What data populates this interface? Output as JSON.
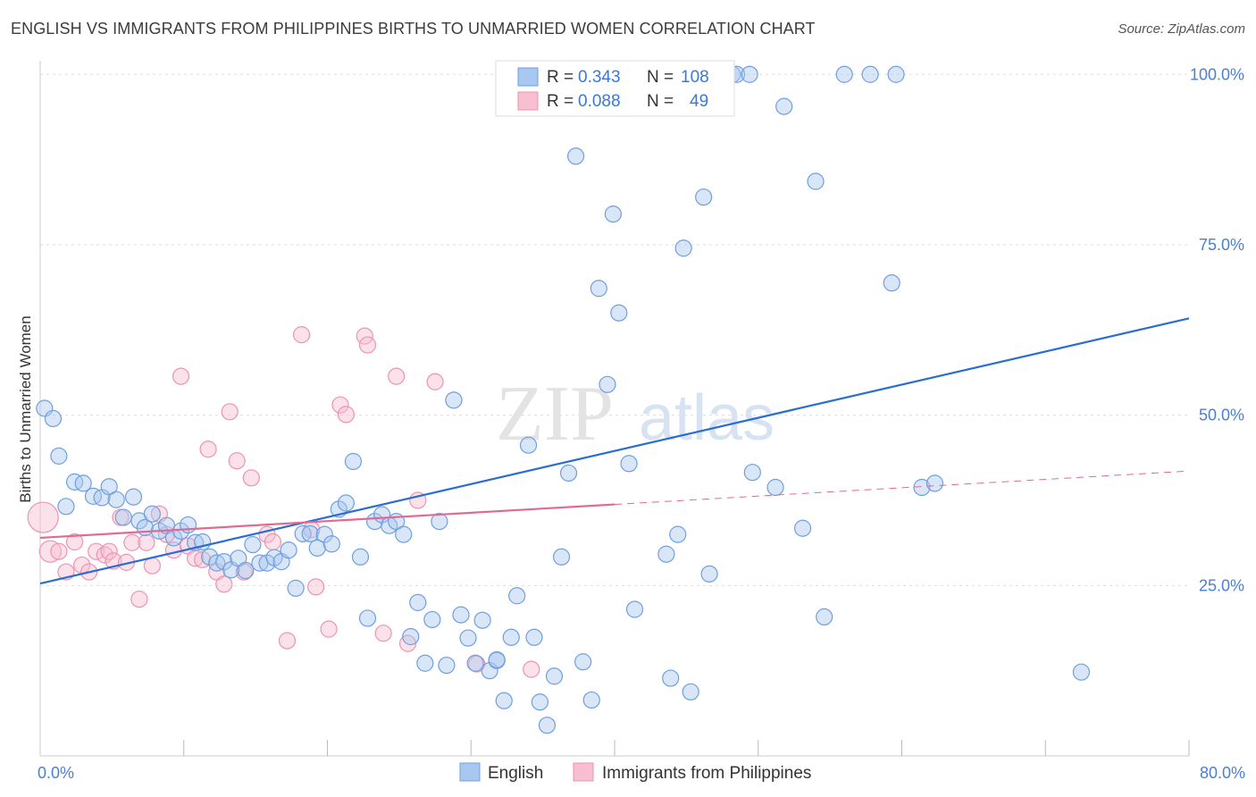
{
  "title": "ENGLISH VS IMMIGRANTS FROM PHILIPPINES BIRTHS TO UNMARRIED WOMEN CORRELATION CHART",
  "source": "Source: ZipAtlas.com",
  "watermark": {
    "zip": "ZIP",
    "atlas": "atlas"
  },
  "legend": {
    "english": {
      "r_label": "R =",
      "r": "0.343",
      "n_label": "N =",
      "n": "108"
    },
    "philippines": {
      "r_label": "R =",
      "r": "0.088",
      "n_label": "N =",
      "n": "49"
    }
  },
  "colors": {
    "english_fill": "#a9c8f0",
    "english_stroke": "#6f9fe0",
    "english_line": "#2a6dd2",
    "phil_fill": "#f7bfd0",
    "phil_stroke": "#ec93b0",
    "phil_line": "#e06a93",
    "grid": "#dddddd",
    "axis": "#cccccc"
  },
  "chart_data": {
    "type": "scatter",
    "xlabel": "",
    "ylabel": "Births to Unmarried Women",
    "xlim": [
      0,
      80
    ],
    "ylim": [
      0,
      102
    ],
    "x_tick_labels": [
      {
        "value": 0,
        "label": "0.0%"
      },
      {
        "value": 80,
        "label": "80.0%"
      }
    ],
    "y_tick_labels": [
      {
        "value": 25,
        "label": "25.0%"
      },
      {
        "value": 50,
        "label": "50.0%"
      },
      {
        "value": 75,
        "label": "75.0%"
      },
      {
        "value": 100,
        "label": "100.0%"
      }
    ],
    "series": [
      {
        "name": "English",
        "trend": {
          "x": [
            0,
            80
          ],
          "y": [
            25.3,
            64.2
          ]
        },
        "points": [
          [
            0.3,
            51.0
          ],
          [
            0.9,
            49.5
          ],
          [
            1.3,
            44.0
          ],
          [
            1.8,
            36.6
          ],
          [
            2.4,
            40.2
          ],
          [
            3.0,
            40.0
          ],
          [
            3.7,
            38.1
          ],
          [
            4.3,
            37.9
          ],
          [
            4.8,
            39.5
          ],
          [
            5.3,
            37.6
          ],
          [
            5.8,
            35.0
          ],
          [
            6.5,
            38.0
          ],
          [
            6.9,
            34.5
          ],
          [
            7.3,
            33.5
          ],
          [
            7.8,
            35.5
          ],
          [
            8.3,
            33.0
          ],
          [
            8.8,
            33.8
          ],
          [
            9.3,
            32.0
          ],
          [
            9.8,
            33.0
          ],
          [
            10.3,
            33.9
          ],
          [
            10.8,
            31.3
          ],
          [
            11.3,
            31.4
          ],
          [
            11.8,
            29.2
          ],
          [
            12.3,
            28.3
          ],
          [
            12.8,
            28.5
          ],
          [
            13.3,
            27.3
          ],
          [
            13.8,
            29.0
          ],
          [
            14.3,
            27.2
          ],
          [
            14.8,
            31.0
          ],
          [
            15.3,
            28.3
          ],
          [
            15.8,
            28.3
          ],
          [
            16.3,
            29.1
          ],
          [
            16.8,
            28.5
          ],
          [
            17.3,
            30.2
          ],
          [
            17.8,
            24.6
          ],
          [
            18.3,
            32.6
          ],
          [
            18.8,
            32.6
          ],
          [
            19.3,
            30.5
          ],
          [
            19.8,
            32.5
          ],
          [
            20.3,
            31.1
          ],
          [
            20.8,
            36.2
          ],
          [
            21.3,
            37.1
          ],
          [
            21.8,
            43.2
          ],
          [
            22.3,
            29.2
          ],
          [
            22.8,
            20.2
          ],
          [
            23.3,
            34.4
          ],
          [
            23.8,
            35.4
          ],
          [
            24.3,
            33.8
          ],
          [
            24.8,
            34.4
          ],
          [
            25.3,
            32.5
          ],
          [
            25.8,
            17.5
          ],
          [
            26.3,
            22.5
          ],
          [
            26.8,
            13.6
          ],
          [
            27.3,
            20.0
          ],
          [
            27.8,
            34.4
          ],
          [
            28.3,
            13.3
          ],
          [
            28.8,
            52.2
          ],
          [
            29.3,
            20.7
          ],
          [
            29.8,
            17.3
          ],
          [
            30.3,
            13.6
          ],
          [
            30.8,
            19.9
          ],
          [
            31.3,
            12.5
          ],
          [
            31.8,
            14.0
          ],
          [
            32.3,
            8.1
          ],
          [
            32.8,
            17.4
          ],
          [
            33.2,
            23.5
          ],
          [
            34.0,
            45.6
          ],
          [
            34.4,
            17.4
          ],
          [
            34.8,
            7.9
          ],
          [
            35.3,
            4.5
          ],
          [
            35.8,
            11.7
          ],
          [
            36.3,
            29.2
          ],
          [
            36.8,
            41.5
          ],
          [
            37.3,
            88.0
          ],
          [
            37.8,
            13.8
          ],
          [
            38.4,
            8.2
          ],
          [
            38.9,
            68.6
          ],
          [
            39.5,
            54.5
          ],
          [
            39.9,
            79.5
          ],
          [
            40.3,
            65.0
          ],
          [
            41.0,
            42.9
          ],
          [
            41.4,
            21.5
          ],
          [
            42.3,
            100.0
          ],
          [
            43.0,
            100.0
          ],
          [
            43.6,
            29.6
          ],
          [
            43.9,
            11.4
          ],
          [
            44.4,
            32.5
          ],
          [
            44.8,
            74.5
          ],
          [
            45.3,
            9.4
          ],
          [
            46.2,
            82.0
          ],
          [
            46.6,
            26.7
          ],
          [
            48.2,
            100.0
          ],
          [
            48.5,
            100.0
          ],
          [
            49.4,
            100.0
          ],
          [
            49.6,
            41.6
          ],
          [
            51.2,
            39.4
          ],
          [
            51.8,
            95.3
          ],
          [
            53.1,
            33.4
          ],
          [
            54.0,
            84.3
          ],
          [
            54.6,
            20.4
          ],
          [
            56.0,
            100.0
          ],
          [
            57.8,
            100.0
          ],
          [
            59.3,
            69.4
          ],
          [
            59.6,
            100.0
          ],
          [
            61.4,
            39.4
          ],
          [
            62.3,
            40.0
          ],
          [
            72.5,
            12.3
          ],
          [
            31.8,
            14.1
          ]
        ]
      },
      {
        "name": "Immigrants from Philippines",
        "trend": {
          "x": [
            0,
            40
          ],
          "y": [
            32.0,
            36.9
          ]
        },
        "trend_extension": {
          "x": [
            40,
            80
          ],
          "y": [
            36.9,
            41.8
          ]
        },
        "points": [
          [
            0.2,
            35.0
          ],
          [
            0.7,
            30.0
          ],
          [
            1.3,
            30.0
          ],
          [
            1.8,
            27.0
          ],
          [
            2.4,
            31.4
          ],
          [
            2.9,
            28.0
          ],
          [
            3.4,
            27.0
          ],
          [
            3.9,
            30.0
          ],
          [
            4.5,
            29.5
          ],
          [
            4.8,
            30.0
          ],
          [
            5.1,
            28.6
          ],
          [
            5.6,
            35.0
          ],
          [
            6.0,
            28.4
          ],
          [
            6.4,
            31.3
          ],
          [
            6.9,
            23.0
          ],
          [
            7.4,
            31.3
          ],
          [
            7.8,
            27.9
          ],
          [
            8.3,
            35.5
          ],
          [
            8.8,
            32.5
          ],
          [
            9.3,
            30.2
          ],
          [
            9.8,
            55.7
          ],
          [
            10.3,
            30.8
          ],
          [
            10.8,
            29.0
          ],
          [
            11.3,
            28.8
          ],
          [
            11.7,
            45.0
          ],
          [
            12.3,
            27.0
          ],
          [
            12.8,
            25.2
          ],
          [
            13.2,
            50.5
          ],
          [
            13.7,
            43.3
          ],
          [
            14.2,
            27.0
          ],
          [
            14.7,
            40.8
          ],
          [
            15.8,
            32.5
          ],
          [
            16.2,
            31.4
          ],
          [
            17.2,
            16.9
          ],
          [
            18.2,
            61.8
          ],
          [
            18.9,
            33.2
          ],
          [
            19.2,
            24.8
          ],
          [
            20.1,
            18.6
          ],
          [
            20.9,
            51.5
          ],
          [
            21.3,
            50.1
          ],
          [
            22.6,
            61.6
          ],
          [
            22.8,
            60.3
          ],
          [
            23.9,
            18.0
          ],
          [
            24.8,
            55.7
          ],
          [
            25.6,
            16.5
          ],
          [
            26.3,
            37.5
          ],
          [
            27.5,
            54.9
          ],
          [
            30.4,
            13.5
          ],
          [
            34.2,
            12.7
          ]
        ]
      }
    ]
  },
  "bottom_legend": {
    "english": "English",
    "philippines": "Immigrants from Philippines"
  }
}
